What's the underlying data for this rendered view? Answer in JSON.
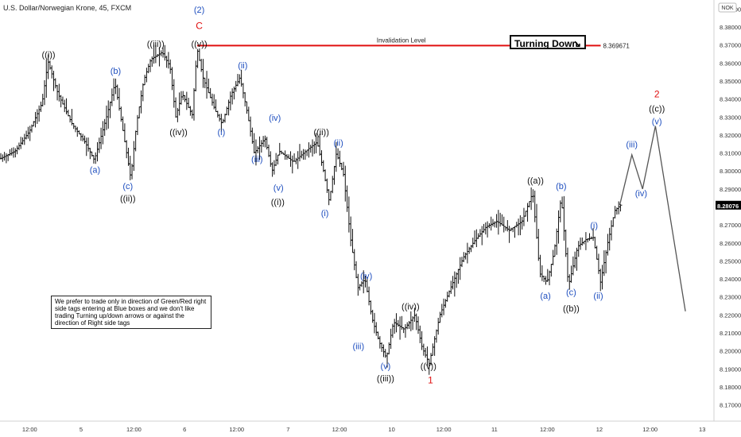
{
  "header": {
    "title": "U.S. Dollar/Norwegian Krone, 45, FXCM",
    "currency_badge": "NOK"
  },
  "turning_box": {
    "label": "Turning Down",
    "icon": "arrow-down-right-icon"
  },
  "note": {
    "text": "We prefer to trade only in direction of Green/Red right side tags entering at Blue boxes and we don't like trading Turning up/down arrows or against the direction of Right side tags"
  },
  "colors": {
    "blue": "#1f4fbf",
    "red": "#e01010",
    "black": "#111111",
    "price_bg": "#000000",
    "price_fg": "#ffffff"
  },
  "chart_data": {
    "type": "bar",
    "ylim": [
      8.165,
      8.393
    ],
    "y_ticks": [
      "8.17000",
      "8.18000",
      "8.19000",
      "8.20000",
      "8.21000",
      "8.22000",
      "8.23000",
      "8.24000",
      "8.25000",
      "8.26000",
      "8.27000",
      "8.28000",
      "8.29000",
      "8.30000",
      "8.31000",
      "8.32000",
      "8.33000",
      "8.34000",
      "8.35000",
      "8.36000",
      "8.37000",
      "8.38000",
      "8.39000"
    ],
    "x_ticks": [
      {
        "label": "12:00",
        "pos": 0.046
      },
      {
        "label": "5",
        "pos": 0.118
      },
      {
        "label": "12:00",
        "pos": 0.192
      },
      {
        "label": "6",
        "pos": 0.263
      },
      {
        "label": "12:00",
        "pos": 0.336
      },
      {
        "label": "7",
        "pos": 0.408
      },
      {
        "label": "12:00",
        "pos": 0.48
      },
      {
        "label": "10",
        "pos": 0.553
      },
      {
        "label": "12:00",
        "pos": 0.626
      },
      {
        "label": "11",
        "pos": 0.697
      },
      {
        "label": "12:00",
        "pos": 0.771
      },
      {
        "label": "12",
        "pos": 0.844
      },
      {
        "label": "12:00",
        "pos": 0.915
      },
      {
        "label": "13",
        "pos": 0.988
      }
    ],
    "current_price": "8.28076",
    "current_value": 8.28076,
    "invalidation": {
      "label": "Invalidation Level",
      "value_label": "8.369671",
      "value": 8.369671,
      "start": 0.276,
      "end": 0.848
    },
    "price_path": [
      [
        0.0,
        8.307
      ],
      [
        0.02,
        8.311
      ],
      [
        0.04,
        8.322
      ],
      [
        0.058,
        8.338
      ],
      [
        0.066,
        8.361
      ],
      [
        0.08,
        8.343
      ],
      [
        0.1,
        8.326
      ],
      [
        0.118,
        8.316
      ],
      [
        0.131,
        8.306
      ],
      [
        0.148,
        8.33
      ],
      [
        0.16,
        8.349
      ],
      [
        0.17,
        8.325
      ],
      [
        0.182,
        8.296
      ],
      [
        0.19,
        8.326
      ],
      [
        0.2,
        8.35
      ],
      [
        0.21,
        8.362
      ],
      [
        0.226,
        8.366
      ],
      [
        0.237,
        8.358
      ],
      [
        0.245,
        8.33
      ],
      [
        0.254,
        8.343
      ],
      [
        0.268,
        8.331
      ],
      [
        0.275,
        8.368
      ],
      [
        0.283,
        8.352
      ],
      [
        0.3,
        8.334
      ],
      [
        0.31,
        8.326
      ],
      [
        0.322,
        8.342
      ],
      [
        0.335,
        8.352
      ],
      [
        0.345,
        8.333
      ],
      [
        0.355,
        8.31
      ],
      [
        0.37,
        8.318
      ],
      [
        0.38,
        8.3
      ],
      [
        0.39,
        8.311
      ],
      [
        0.41,
        8.305
      ],
      [
        0.43,
        8.312
      ],
      [
        0.443,
        8.316
      ],
      [
        0.452,
        8.3
      ],
      [
        0.46,
        8.283
      ],
      [
        0.47,
        8.31
      ],
      [
        0.48,
        8.298
      ],
      [
        0.49,
        8.262
      ],
      [
        0.5,
        8.235
      ],
      [
        0.51,
        8.24
      ],
      [
        0.52,
        8.218
      ],
      [
        0.53,
        8.205
      ],
      [
        0.54,
        8.196
      ],
      [
        0.55,
        8.216
      ],
      [
        0.565,
        8.212
      ],
      [
        0.58,
        8.22
      ],
      [
        0.59,
        8.202
      ],
      [
        0.6,
        8.193
      ],
      [
        0.615,
        8.22
      ],
      [
        0.63,
        8.235
      ],
      [
        0.648,
        8.252
      ],
      [
        0.665,
        8.262
      ],
      [
        0.68,
        8.269
      ],
      [
        0.695,
        8.272
      ],
      [
        0.712,
        8.267
      ],
      [
        0.73,
        8.272
      ],
      [
        0.745,
        8.288
      ],
      [
        0.755,
        8.243
      ],
      [
        0.765,
        8.238
      ],
      [
        0.775,
        8.255
      ],
      [
        0.785,
        8.286
      ],
      [
        0.795,
        8.236
      ],
      [
        0.808,
        8.258
      ],
      [
        0.82,
        8.262
      ],
      [
        0.83,
        8.263
      ],
      [
        0.84,
        8.238
      ],
      [
        0.85,
        8.26
      ],
      [
        0.86,
        8.278
      ],
      [
        0.868,
        8.281
      ]
    ],
    "projection": [
      [
        0.868,
        8.281
      ],
      [
        0.885,
        8.309
      ],
      [
        0.9,
        8.29
      ],
      [
        0.918,
        8.325
      ],
      [
        0.96,
        8.222
      ]
    ],
    "labels": [
      {
        "text": "((i))",
        "x": 0.068,
        "y": 8.363,
        "color": "black"
      },
      {
        "text": "(a)",
        "x": 0.133,
        "y": 8.299,
        "color": "blue"
      },
      {
        "text": "(b)",
        "x": 0.162,
        "y": 8.354,
        "color": "blue"
      },
      {
        "text": "(c)",
        "x": 0.179,
        "y": 8.29,
        "color": "blue"
      },
      {
        "text": "((ii))",
        "x": 0.179,
        "y": 8.283,
        "color": "black"
      },
      {
        "text": "((iii))",
        "x": 0.218,
        "y": 8.369,
        "color": "black"
      },
      {
        "text": "((iv))",
        "x": 0.25,
        "y": 8.32,
        "color": "black"
      },
      {
        "text": "(2)",
        "x": 0.279,
        "y": 8.388,
        "color": "blue"
      },
      {
        "text": "C",
        "x": 0.279,
        "y": 8.379,
        "color": "red"
      },
      {
        "text": "((v))",
        "x": 0.279,
        "y": 8.369,
        "color": "black"
      },
      {
        "text": "(ii)",
        "x": 0.34,
        "y": 8.357,
        "color": "blue"
      },
      {
        "text": "(i)",
        "x": 0.31,
        "y": 8.32,
        "color": "blue"
      },
      {
        "text": "(iii)",
        "x": 0.36,
        "y": 8.305,
        "color": "blue"
      },
      {
        "text": "(iv)",
        "x": 0.385,
        "y": 8.328,
        "color": "blue"
      },
      {
        "text": "(v)",
        "x": 0.39,
        "y": 8.289,
        "color": "blue"
      },
      {
        "text": "((i))",
        "x": 0.389,
        "y": 8.281,
        "color": "black"
      },
      {
        "text": "((ii))",
        "x": 0.45,
        "y": 8.32,
        "color": "black"
      },
      {
        "text": "(ii)",
        "x": 0.474,
        "y": 8.314,
        "color": "blue"
      },
      {
        "text": "(i)",
        "x": 0.455,
        "y": 8.275,
        "color": "blue"
      },
      {
        "text": "(iv)",
        "x": 0.513,
        "y": 8.24,
        "color": "blue"
      },
      {
        "text": "(iii)",
        "x": 0.502,
        "y": 8.201,
        "color": "blue"
      },
      {
        "text": "(v)",
        "x": 0.54,
        "y": 8.19,
        "color": "blue"
      },
      {
        "text": "((iii))",
        "x": 0.54,
        "y": 8.183,
        "color": "black"
      },
      {
        "text": "((iv))",
        "x": 0.575,
        "y": 8.223,
        "color": "black"
      },
      {
        "text": "((v))",
        "x": 0.6,
        "y": 8.19,
        "color": "black"
      },
      {
        "text": "1",
        "x": 0.603,
        "y": 8.182,
        "color": "red"
      },
      {
        "text": "((a))",
        "x": 0.75,
        "y": 8.293,
        "color": "black"
      },
      {
        "text": "(b)",
        "x": 0.786,
        "y": 8.29,
        "color": "blue"
      },
      {
        "text": "(a)",
        "x": 0.764,
        "y": 8.229,
        "color": "blue"
      },
      {
        "text": "(c)",
        "x": 0.8,
        "y": 8.231,
        "color": "blue"
      },
      {
        "text": "((b))",
        "x": 0.8,
        "y": 8.222,
        "color": "black"
      },
      {
        "text": "(i)",
        "x": 0.832,
        "y": 8.268,
        "color": "blue"
      },
      {
        "text": "(ii)",
        "x": 0.838,
        "y": 8.229,
        "color": "blue"
      },
      {
        "text": "(iii)",
        "x": 0.885,
        "y": 8.313,
        "color": "blue"
      },
      {
        "text": "(iv)",
        "x": 0.898,
        "y": 8.286,
        "color": "blue"
      },
      {
        "text": "2",
        "x": 0.92,
        "y": 8.341,
        "color": "red"
      },
      {
        "text": "((c))",
        "x": 0.92,
        "y": 8.333,
        "color": "black"
      },
      {
        "text": "(v)",
        "x": 0.92,
        "y": 8.326,
        "color": "blue"
      }
    ]
  }
}
